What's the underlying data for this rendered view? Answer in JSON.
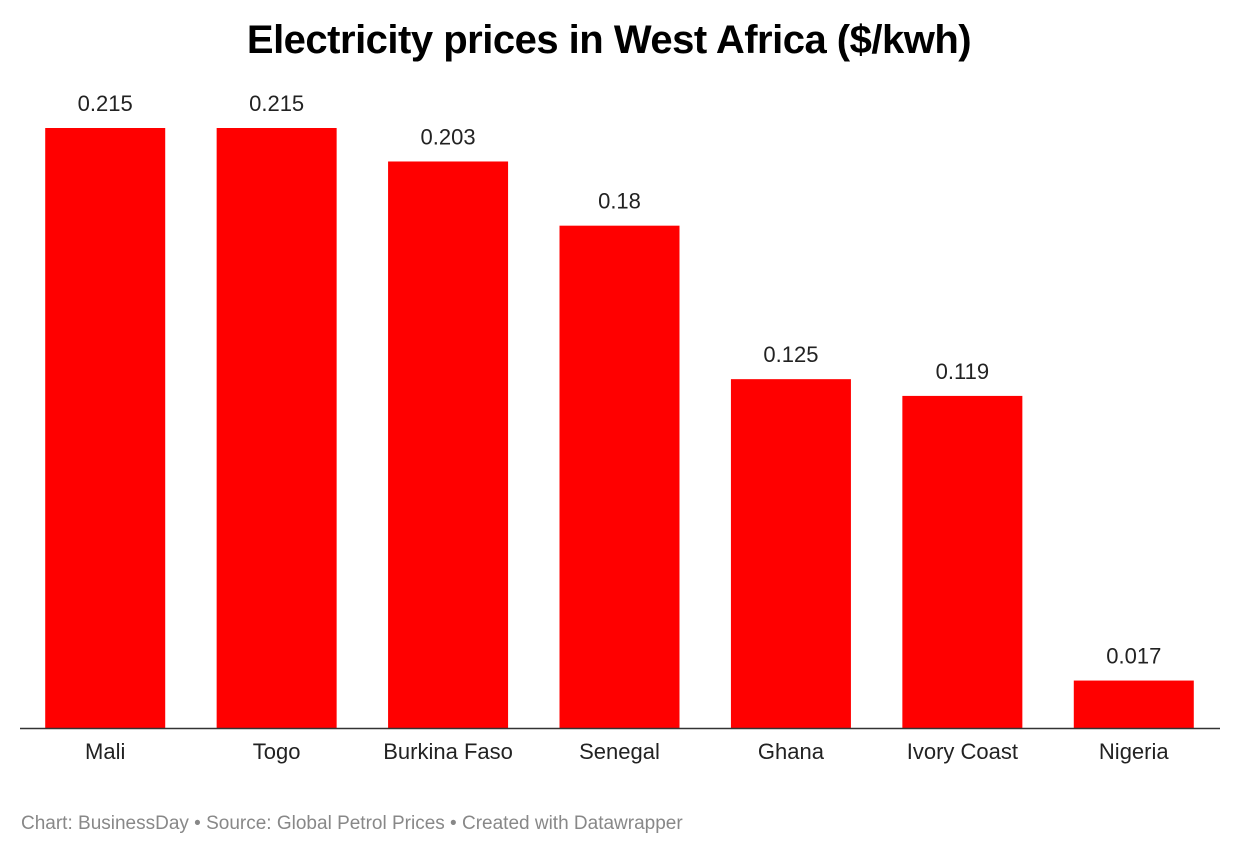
{
  "chart_data": {
    "type": "bar",
    "title": "Electricity prices in West Africa ($/kwh)",
    "categories": [
      "Mali",
      "Togo",
      "Burkina Faso",
      "Senegal",
      "Ghana",
      "Ivory Coast",
      "Nigeria"
    ],
    "values": [
      0.215,
      0.215,
      0.203,
      0.18,
      0.125,
      0.119,
      0.017
    ],
    "value_labels": [
      "0.215",
      "0.215",
      "0.203",
      "0.18",
      "0.125",
      "0.119",
      "0.017"
    ],
    "xlabel": "",
    "ylabel": "",
    "ylim": [
      0,
      0.215
    ],
    "grid": false,
    "legend": "none",
    "bar_color": "#ff0000"
  },
  "footer": {
    "text": "Chart: BusinessDay • Source: Global Petrol Prices • Created with Datawrapper"
  }
}
